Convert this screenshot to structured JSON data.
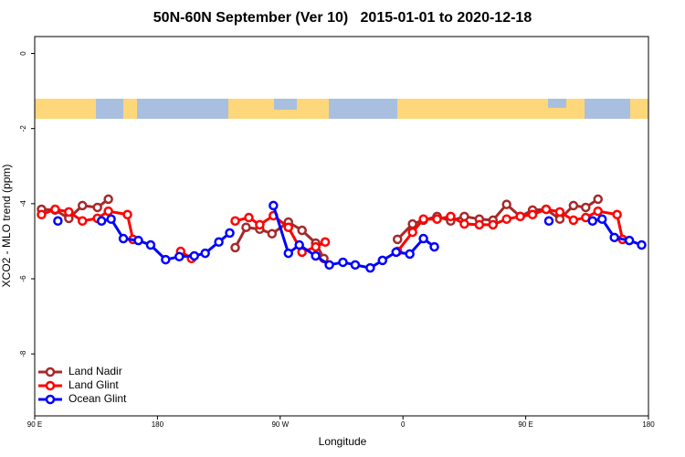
{
  "chart_data": {
    "type": "line",
    "title": "50N-60N September (Ver 10)   2015-01-01 to 2020-12-18",
    "x_label": "Longitude",
    "y_label": "XCO2 - MLO trend (ppm)",
    "xlim": [
      90,
      540
    ],
    "xticks": [
      {
        "value": 90,
        "label": "90 E"
      },
      180,
      {
        "value": 270,
        "label": "90 W"
      },
      {
        "value": 360,
        "label": "0"
      },
      {
        "value": 450,
        "label": "90 E"
      },
      {
        "value": 540,
        "label": "180"
      }
    ],
    "ylim": [
      -9.65,
      0.45
    ],
    "yticks": [
      0,
      -2,
      -4,
      -6,
      -8
    ],
    "legend": "lower left",
    "series": [
      {
        "name": "Land Nadir",
        "color": "#a52a2a",
        "x": [
          95,
          105,
          115,
          125,
          136,
          144,
          155,
          237,
          245,
          255,
          264,
          276,
          286,
          296,
          302,
          315,
          356,
          367,
          375,
          385,
          395,
          405,
          416,
          426,
          436,
          446,
          455,
          465,
          475,
          485,
          494,
          503
        ],
        "values": [
          -4.15,
          -4.17,
          -4.39,
          -4.05,
          -4.1,
          -3.88,
          null,
          -5.17,
          -4.63,
          -4.68,
          -4.8,
          -4.49,
          -4.71,
          -5.05,
          -5.46,
          null,
          -4.95,
          -4.54,
          -4.44,
          -4.34,
          -4.46,
          -4.34,
          -4.41,
          -4.44,
          -4.02,
          -4.34,
          -4.17,
          -4.15,
          -4.41,
          -4.05,
          -4.1,
          -3.88
        ]
      },
      {
        "name": "Land Glint",
        "color": "#ff0000",
        "x": [
          95,
          105,
          115,
          125,
          136,
          144,
          158,
          162,
          180,
          197,
          205,
          220,
          237,
          247,
          255,
          265,
          276,
          286,
          296,
          303,
          315,
          356,
          367,
          375,
          385,
          395,
          405,
          416,
          426,
          436,
          446,
          455,
          465,
          475,
          485,
          494,
          503,
          517,
          521
        ],
        "values": [
          -4.29,
          -4.15,
          -4.22,
          -4.46,
          -4.39,
          -4.2,
          -4.29,
          -4.95,
          null,
          -5.27,
          -5.46,
          null,
          -4.46,
          -4.37,
          -4.56,
          -4.32,
          -4.63,
          -5.29,
          -5.15,
          -5.02,
          null,
          -5.27,
          -4.76,
          -4.41,
          -4.41,
          -4.34,
          -4.54,
          -4.56,
          -4.56,
          -4.41,
          -4.34,
          -4.29,
          -4.15,
          -4.22,
          -4.44,
          -4.37,
          -4.2,
          -4.29,
          -4.95
        ]
      },
      {
        "name": "Ocean Glint",
        "color": "#0000ff",
        "x": [
          107,
          120,
          139,
          146,
          155,
          166,
          175,
          186,
          196,
          207,
          215,
          225,
          233,
          250,
          265,
          276,
          284,
          296,
          306,
          316,
          325,
          336,
          345,
          355,
          365,
          375,
          383,
          420,
          467,
          480,
          499,
          506,
          515,
          526,
          535
        ],
        "values": [
          -4.46,
          null,
          -4.46,
          -4.41,
          -4.93,
          -4.98,
          -5.1,
          -5.49,
          -5.41,
          -5.39,
          -5.32,
          -5.02,
          -4.78,
          null,
          -4.05,
          -5.32,
          -5.1,
          -5.39,
          -5.63,
          -5.56,
          -5.63,
          -5.71,
          -5.51,
          -5.29,
          -5.34,
          -4.93,
          -5.15,
          null,
          -4.46,
          null,
          -4.46,
          -4.41,
          -4.9,
          -4.98,
          -5.1
        ]
      }
    ]
  }
}
